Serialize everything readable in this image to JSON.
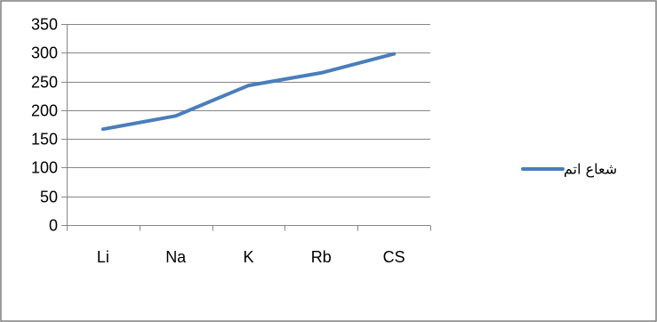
{
  "chart_data": {
    "type": "line",
    "categories": [
      "Li",
      "Na",
      "K",
      "Rb",
      "CS"
    ],
    "series": [
      {
        "name": "شعاع اتم",
        "values": [
          167,
          190,
          243,
          265,
          298
        ],
        "color": "#4a7ebb"
      }
    ],
    "ylim": [
      0,
      350
    ],
    "yticks": [
      0,
      50,
      100,
      150,
      200,
      250,
      300,
      350
    ],
    "grid": true,
    "legend_position": "right",
    "title": "",
    "xlabel": "",
    "ylabel": ""
  }
}
